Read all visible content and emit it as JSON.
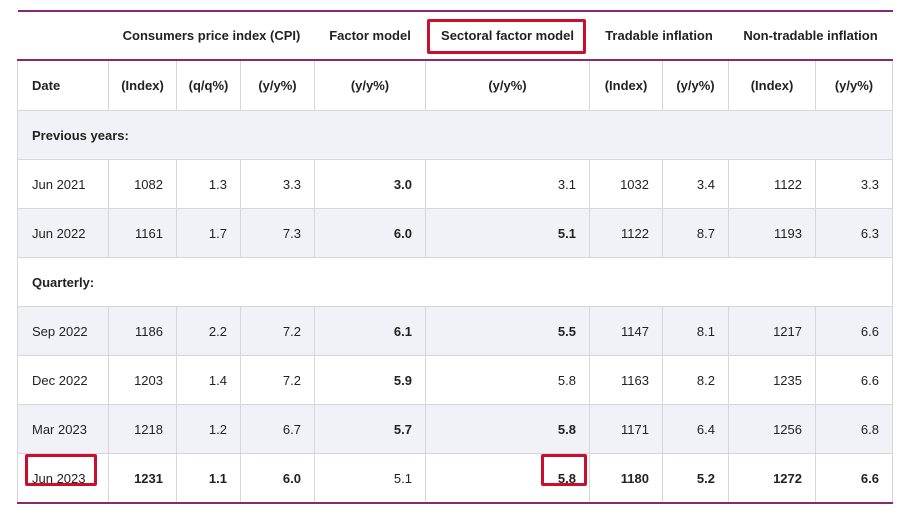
{
  "group_headers": [
    "",
    "Consumers price index (CPI)",
    "Factor model",
    "Sectoral factor model",
    "Tradable inflation",
    "Non-tradable inflation"
  ],
  "unit_headers": [
    "Date",
    "(Index)",
    "(q/q%)",
    "(y/y%)",
    "(y/y%)",
    "(y/y%)",
    "(Index)",
    "(y/y%)",
    "(Index)",
    "(y/y%)"
  ],
  "sections": {
    "previous_years": "Previous years:",
    "quarterly": "Quarterly:"
  },
  "rows": [
    {
      "date": "Jun 2021",
      "cpi_index": "1082",
      "cpi_qq": "1.3",
      "cpi_yy": "3.3",
      "factor": "3.0",
      "sectoral": "3.1",
      "trad_index": "1032",
      "trad_yy": "3.4",
      "nontrad_index": "1122",
      "nontrad_yy": "3.3"
    },
    {
      "date": "Jun 2022",
      "cpi_index": "1161",
      "cpi_qq": "1.7",
      "cpi_yy": "7.3",
      "factor": "6.0",
      "sectoral": "5.1",
      "trad_index": "1122",
      "trad_yy": "8.7",
      "nontrad_index": "1193",
      "nontrad_yy": "6.3"
    },
    {
      "date": "Sep 2022",
      "cpi_index": "1186",
      "cpi_qq": "2.2",
      "cpi_yy": "7.2",
      "factor": "6.1",
      "sectoral": "5.5",
      "trad_index": "1147",
      "trad_yy": "8.1",
      "nontrad_index": "1217",
      "nontrad_yy": "6.6"
    },
    {
      "date": "Dec 2022",
      "cpi_index": "1203",
      "cpi_qq": "1.4",
      "cpi_yy": "7.2",
      "factor": "5.9",
      "sectoral": "5.8",
      "trad_index": "1163",
      "trad_yy": "8.2",
      "nontrad_index": "1235",
      "nontrad_yy": "6.6"
    },
    {
      "date": "Mar 2023",
      "cpi_index": "1218",
      "cpi_qq": "1.2",
      "cpi_yy": "6.7",
      "factor": "5.7",
      "sectoral": "5.8",
      "trad_index": "1171",
      "trad_yy": "6.4",
      "nontrad_index": "1256",
      "nontrad_yy": "6.8"
    },
    {
      "date": "Jun 2023",
      "cpi_index": "1231",
      "cpi_qq": "1.1",
      "cpi_yy": "6.0",
      "factor": "5.1",
      "sectoral": "5.8",
      "trad_index": "1180",
      "trad_yy": "5.2",
      "nontrad_index": "1272",
      "nontrad_yy": "6.6"
    }
  ],
  "highlight_color": "#c8102e",
  "header_rule_color": "#8a2a6e"
}
